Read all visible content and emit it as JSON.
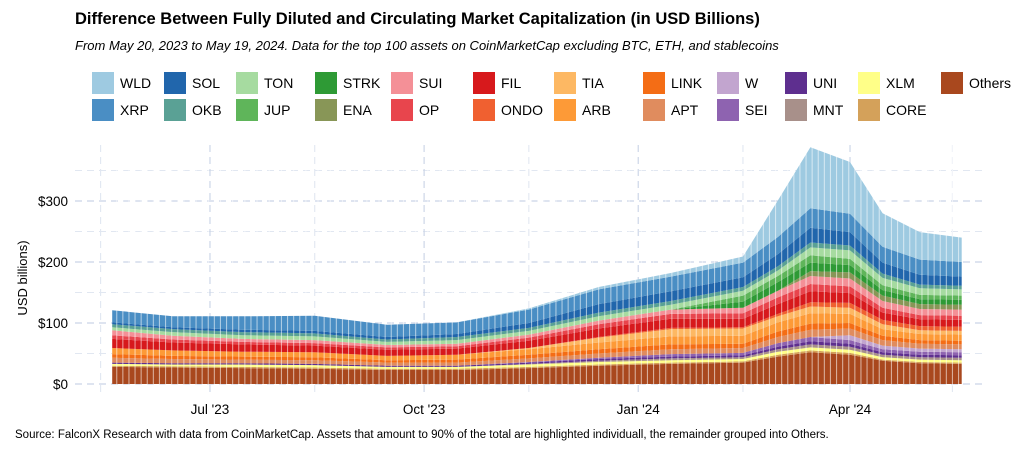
{
  "title": "Difference Between Fully Diluted and Circulating Market Capitalization (in USD Billions)",
  "subtitle": "From May 20, 2023 to May 19, 2024. Data for the top 100 assets on CoinMarketCap excluding BTC, ETH, and stablecoins",
  "source": "Source: FalconX Research with data from CoinMarketCap. Assets that amount to 90% of the total are highlighted individuall, the remainder grouped into Others.",
  "legend": [
    {
      "name": "WLD",
      "color": "#9ecae1"
    },
    {
      "name": "XRP",
      "color": "#4a8ec4"
    },
    {
      "name": "SOL",
      "color": "#2166ac"
    },
    {
      "name": "OKB",
      "color": "#5aa195"
    },
    {
      "name": "TON",
      "color": "#a6dba0"
    },
    {
      "name": "JUP",
      "color": "#5fb55a"
    },
    {
      "name": "STRK",
      "color": "#2e9a35"
    },
    {
      "name": "ENA",
      "color": "#889657"
    },
    {
      "name": "SUI",
      "color": "#f49097"
    },
    {
      "name": "OP",
      "color": "#e8454d"
    },
    {
      "name": "FIL",
      "color": "#d7191c"
    },
    {
      "name": "ONDO",
      "color": "#f06030"
    },
    {
      "name": "TIA",
      "color": "#fdb863"
    },
    {
      "name": "ARB",
      "color": "#fd9a37"
    },
    {
      "name": "LINK",
      "color": "#f46d15"
    },
    {
      "name": "APT",
      "color": "#e08c5e"
    },
    {
      "name": "W",
      "color": "#c2a5cf"
    },
    {
      "name": "SEI",
      "color": "#8e63b0"
    },
    {
      "name": "UNI",
      "color": "#5e2f8f"
    },
    {
      "name": "MNT",
      "color": "#a8908a"
    },
    {
      "name": "XLM",
      "color": "#ffff88"
    },
    {
      "name": "CORE",
      "color": "#d4a15a"
    },
    {
      "name": "Others",
      "color": "#a9481e"
    }
  ],
  "chart_data": {
    "type": "area",
    "stacked": true,
    "xlabel": "",
    "ylabel": "USD billions)",
    "x_range": [
      "2023-05-20",
      "2024-05-19"
    ],
    "ylim": [
      0,
      370
    ],
    "y_ticks": [
      0,
      100,
      200,
      300
    ],
    "y_tick_labels": [
      "$0",
      "$100",
      "$200",
      "$300"
    ],
    "x_ticks": [
      "2023-07-01",
      "2023-10-01",
      "2024-01-01",
      "2024-04-01"
    ],
    "x_tick_labels": [
      "Jul '23",
      "Oct '23",
      "Jan '24",
      "Apr '24"
    ],
    "grid": true,
    "legend_position": "top",
    "series_names": [
      "Others",
      "CORE",
      "XLM",
      "MNT",
      "UNI",
      "SEI",
      "W",
      "APT",
      "LINK",
      "ARB",
      "TIA",
      "ONDO",
      "FIL",
      "OP",
      "SUI",
      "ENA",
      "STRK",
      "JUP",
      "TON",
      "OKB",
      "SOL",
      "XRP",
      "WLD"
    ],
    "dates": [
      "2023-05-20",
      "2023-06-15",
      "2023-07-15",
      "2023-08-15",
      "2023-09-15",
      "2023-10-15",
      "2023-11-15",
      "2023-12-15",
      "2024-01-15",
      "2024-02-15",
      "2024-03-01",
      "2024-03-15",
      "2024-04-01",
      "2024-04-15",
      "2024-05-01",
      "2024-05-19"
    ],
    "values": [
      [
        28,
        27,
        26,
        25,
        23,
        23,
        26,
        30,
        33,
        35,
        45,
        52,
        48,
        38,
        34,
        33
      ],
      [
        2,
        2,
        2,
        2,
        2,
        2,
        2,
        2,
        2,
        2,
        3,
        3,
        3,
        2,
        2,
        2
      ],
      [
        3,
        3,
        4,
        4,
        3,
        3,
        4,
        4,
        4,
        4,
        5,
        5,
        5,
        4,
        4,
        4
      ],
      [
        0,
        0,
        0,
        0,
        0,
        0,
        1,
        2,
        3,
        3,
        4,
        5,
        5,
        4,
        4,
        4
      ],
      [
        2,
        2,
        2,
        2,
        2,
        2,
        2,
        3,
        3,
        3,
        4,
        5,
        5,
        4,
        4,
        4
      ],
      [
        0,
        0,
        0,
        0,
        0,
        0,
        1,
        2,
        4,
        4,
        6,
        7,
        6,
        5,
        5,
        5
      ],
      [
        0,
        0,
        0,
        0,
        0,
        0,
        0,
        0,
        0,
        0,
        0,
        0,
        8,
        6,
        5,
        5
      ],
      [
        8,
        7,
        6,
        6,
        5,
        5,
        6,
        7,
        8,
        8,
        10,
        12,
        11,
        9,
        8,
        8
      ],
      [
        6,
        5,
        5,
        5,
        4,
        5,
        6,
        7,
        8,
        7,
        9,
        10,
        9,
        7,
        6,
        6
      ],
      [
        10,
        9,
        8,
        8,
        7,
        8,
        9,
        11,
        13,
        13,
        15,
        17,
        15,
        11,
        10,
        10
      ],
      [
        0,
        0,
        0,
        0,
        0,
        0,
        2,
        8,
        12,
        12,
        10,
        11,
        10,
        8,
        6,
        6
      ],
      [
        0,
        0,
        0,
        0,
        0,
        0,
        0,
        1,
        2,
        2,
        4,
        7,
        8,
        7,
        7,
        7
      ],
      [
        15,
        13,
        12,
        11,
        10,
        10,
        12,
        14,
        15,
        14,
        16,
        18,
        16,
        12,
        11,
        11
      ],
      [
        6,
        5,
        4,
        4,
        4,
        4,
        5,
        7,
        8,
        9,
        11,
        12,
        11,
        8,
        7,
        7
      ],
      [
        8,
        6,
        5,
        5,
        4,
        4,
        5,
        6,
        7,
        9,
        11,
        13,
        13,
        11,
        10,
        10
      ],
      [
        0,
        0,
        0,
        0,
        0,
        0,
        0,
        0,
        0,
        0,
        0,
        8,
        10,
        9,
        8,
        8
      ],
      [
        0,
        0,
        0,
        0,
        0,
        0,
        0,
        0,
        0,
        10,
        14,
        14,
        12,
        9,
        8,
        8
      ],
      [
        0,
        0,
        0,
        0,
        0,
        0,
        0,
        0,
        0,
        10,
        10,
        12,
        10,
        8,
        7,
        7
      ],
      [
        5,
        6,
        6,
        6,
        5,
        6,
        6,
        7,
        8,
        8,
        9,
        13,
        14,
        12,
        11,
        10
      ],
      [
        5,
        5,
        5,
        5,
        4,
        5,
        5,
        6,
        6,
        6,
        7,
        8,
        8,
        7,
        6,
        6
      ],
      [
        3,
        3,
        4,
        4,
        4,
        5,
        8,
        14,
        16,
        16,
        20,
        24,
        22,
        18,
        16,
        15
      ],
      [
        20,
        18,
        22,
        25,
        20,
        19,
        22,
        24,
        24,
        24,
        28,
        32,
        30,
        26,
        25,
        24
      ],
      [
        0,
        0,
        0,
        0,
        0,
        0,
        2,
        4,
        6,
        10,
        60,
        100,
        85,
        55,
        45,
        40
      ]
    ]
  }
}
